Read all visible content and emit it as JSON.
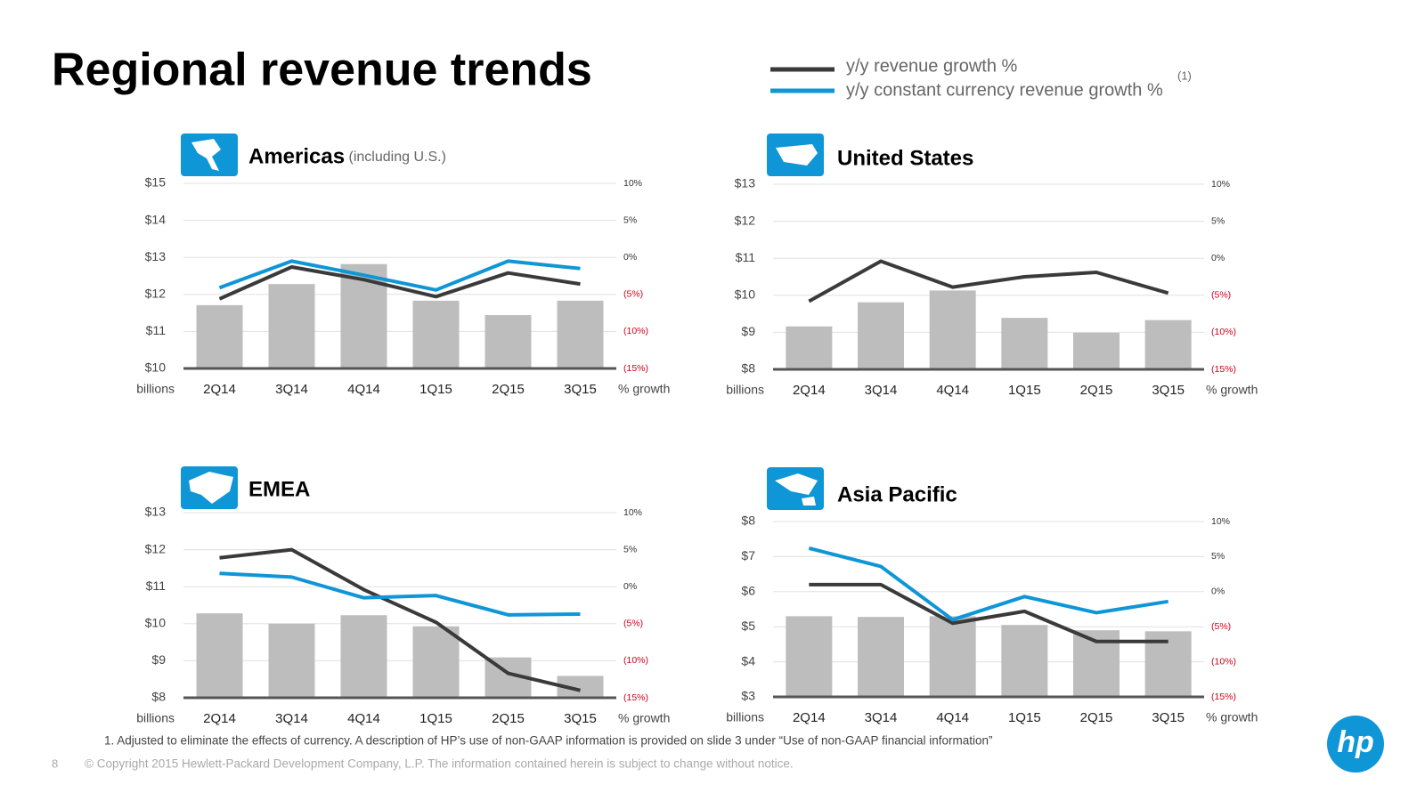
{
  "title": "Regional revenue trends",
  "legend_note": "(1)",
  "footnote": "1.  Adjusted to eliminate the effects of currency. A description of HP’s use of non-GAAP information is provided on slide 3 under “Use of non-GAAP financial information”",
  "page_number": "8",
  "copyright": "© Copyright 2015 Hewlett-Packard Development Company, L.P.  The information contained herein is subject to change without notice.",
  "logo": "hp",
  "chart_data": [
    {
      "type": "bar-line",
      "title": "Americas",
      "subtitle": "(including U.S.)",
      "y_label": "billions",
      "y2_label": "% growth",
      "categories": [
        "2Q14",
        "3Q14",
        "4Q14",
        "1Q15",
        "2Q15",
        "3Q15"
      ],
      "values": [
        11.71,
        12.28,
        12.82,
        11.83,
        11.44,
        11.83
      ],
      "color": "#bdbdbd",
      "series": [
        {
          "name": "y/y revenue growth %",
          "color": "#3a3a3a",
          "axis": "y2",
          "values": [
            -5.6,
            -1.3,
            -3.0,
            -5.3,
            -2.1,
            -3.6
          ]
        },
        {
          "name": "y/y constant currency revenue growth %",
          "color": "#0f96d7",
          "axis": "y2",
          "values": [
            -4.1,
            -0.5,
            -2.4,
            -4.4,
            -0.5,
            -1.5
          ]
        }
      ],
      "ylim": [
        10,
        15
      ],
      "yticks": [
        {
          "value": 10,
          "label": "$10"
        },
        {
          "value": 11,
          "label": "$11"
        },
        {
          "value": 12,
          "label": "$12"
        },
        {
          "value": 13,
          "label": "$13"
        },
        {
          "value": 14,
          "label": "$14"
        },
        {
          "value": 15,
          "label": "$15"
        }
      ],
      "y2lim": [
        -15,
        10
      ],
      "y2ticks": [
        {
          "value": -15,
          "label": "(15%)"
        },
        {
          "value": -10,
          "label": "(10%)"
        },
        {
          "value": -5,
          "label": "(5%)"
        },
        {
          "value": 0,
          "label": "0%"
        },
        {
          "value": 5,
          "label": "5%"
        },
        {
          "value": 10,
          "label": "10%"
        }
      ],
      "grid": true
    },
    {
      "type": "bar-line",
      "title": "United States",
      "y_label": "billions",
      "y2_label": "% growth",
      "categories": [
        "2Q14",
        "3Q14",
        "4Q14",
        "1Q15",
        "2Q15",
        "3Q15"
      ],
      "values": [
        9.16,
        9.81,
        10.13,
        9.39,
        8.99,
        9.33
      ],
      "color": "#bdbdbd",
      "series": [
        {
          "color": "#3a3a3a",
          "axis": "y2",
          "values": [
            -5.8,
            -0.4,
            -3.9,
            -2.5,
            -1.9,
            -4.7
          ]
        }
      ],
      "ylim": [
        8,
        13
      ],
      "yticks": [
        {
          "value": 8,
          "label": "$8"
        },
        {
          "value": 9,
          "label": "$9"
        },
        {
          "value": 10,
          "label": "$10"
        },
        {
          "value": 11,
          "label": "$11"
        },
        {
          "value": 12,
          "label": "$12"
        },
        {
          "value": 13,
          "label": "$13"
        }
      ],
      "y2lim": [
        -15,
        10
      ],
      "y2ticks": [
        {
          "value": -15,
          "label": "(15%)"
        },
        {
          "value": -10,
          "label": "(10%)"
        },
        {
          "value": -5,
          "label": "(5%)"
        },
        {
          "value": 0,
          "label": "0%"
        },
        {
          "value": 5,
          "label": "5%"
        },
        {
          "value": 10,
          "label": "10%"
        }
      ],
      "grid": true
    },
    {
      "type": "bar-line",
      "title": "EMEA",
      "y_label": "billions",
      "y2_label": "% growth",
      "categories": [
        "2Q14",
        "3Q14",
        "4Q14",
        "1Q15",
        "2Q15",
        "3Q15"
      ],
      "values": [
        10.28,
        10.0,
        10.23,
        9.93,
        9.09,
        8.59
      ],
      "color": "#bdbdbd",
      "series": [
        {
          "color": "#3a3a3a",
          "axis": "y2",
          "values": [
            3.9,
            5.0,
            -0.4,
            -4.8,
            -11.7,
            -14.0
          ]
        },
        {
          "color": "#0f96d7",
          "axis": "y2",
          "values": [
            1.8,
            1.3,
            -1.5,
            -1.2,
            -3.8,
            -3.7
          ]
        }
      ],
      "ylim": [
        8,
        13
      ],
      "yticks": [
        {
          "value": 8,
          "label": "$8"
        },
        {
          "value": 9,
          "label": "$9"
        },
        {
          "value": 10,
          "label": "$10"
        },
        {
          "value": 11,
          "label": "$11"
        },
        {
          "value": 12,
          "label": "$12"
        },
        {
          "value": 13,
          "label": "$13"
        }
      ],
      "y2lim": [
        -15,
        10
      ],
      "y2ticks": [
        {
          "value": -15,
          "label": "(15%)"
        },
        {
          "value": -10,
          "label": "(10%)"
        },
        {
          "value": -5,
          "label": "(5%)"
        },
        {
          "value": 0,
          "label": "0%"
        },
        {
          "value": 5,
          "label": "5%"
        },
        {
          "value": 10,
          "label": "10%"
        }
      ],
      "grid": true
    },
    {
      "type": "bar-line",
      "title": "Asia Pacific",
      "y_label": "billions",
      "y2_label": "% growth",
      "categories": [
        "2Q14",
        "3Q14",
        "4Q14",
        "1Q15",
        "2Q15",
        "3Q15"
      ],
      "values": [
        5.3,
        5.28,
        5.3,
        5.05,
        4.9,
        4.87
      ],
      "color": "#bdbdbd",
      "series": [
        {
          "color": "#3a3a3a",
          "axis": "y2",
          "values": [
            1.0,
            1.0,
            -4.5,
            -2.8,
            -7.1,
            -7.1
          ]
        },
        {
          "color": "#0f96d7",
          "axis": "y2",
          "values": [
            6.2,
            3.6,
            -4.0,
            -0.7,
            -3.0,
            -1.4
          ]
        }
      ],
      "ylim": [
        3,
        8
      ],
      "yticks": [
        {
          "value": 3,
          "label": "$3"
        },
        {
          "value": 4,
          "label": "$4"
        },
        {
          "value": 5,
          "label": "$5"
        },
        {
          "value": 6,
          "label": "$6"
        },
        {
          "value": 7,
          "label": "$7"
        },
        {
          "value": 8,
          "label": "$8"
        }
      ],
      "y2lim": [
        -15,
        10
      ],
      "y2ticks": [
        {
          "value": -15,
          "label": "(15%)"
        },
        {
          "value": -10,
          "label": "(10%)"
        },
        {
          "value": -5,
          "label": "(5%)"
        },
        {
          "value": 0,
          "label": "0%"
        },
        {
          "value": 5,
          "label": "5%"
        },
        {
          "value": 10,
          "label": "10%"
        }
      ],
      "grid": true
    }
  ]
}
